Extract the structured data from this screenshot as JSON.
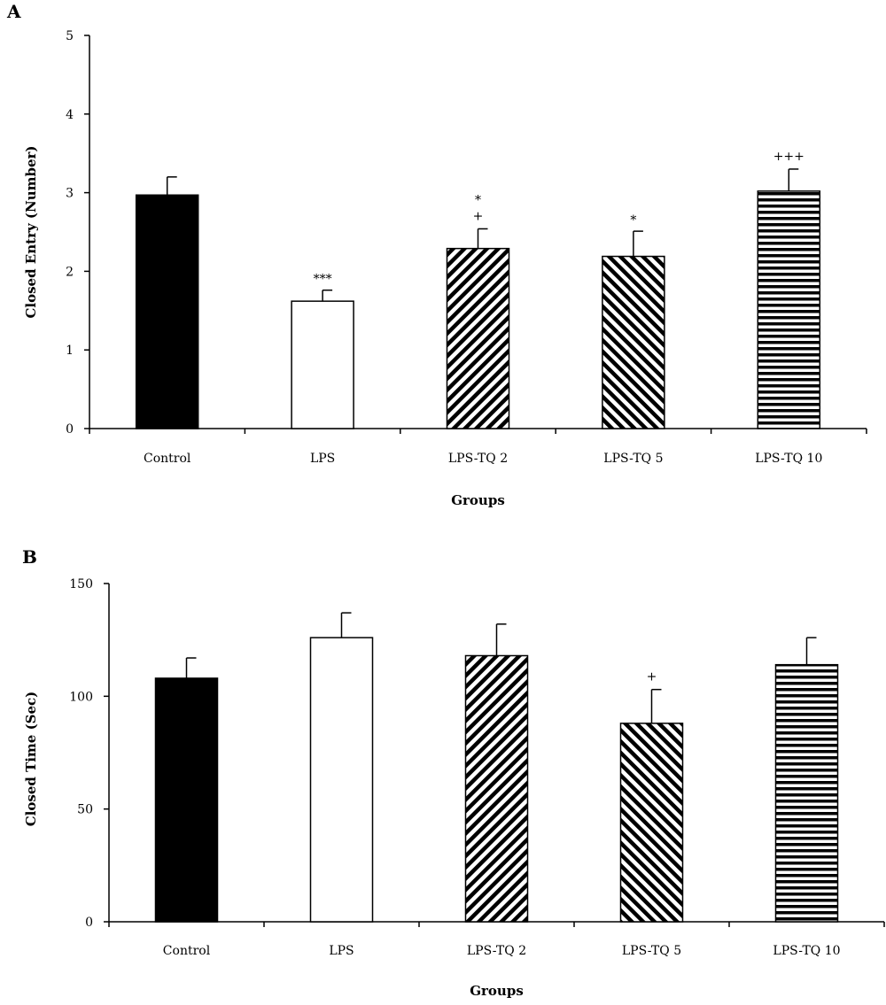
{
  "chart_data": [
    {
      "panel": "A",
      "type": "bar",
      "categories": [
        "Control",
        "LPS",
        "LPS-TQ 2",
        "LPS-TQ 5",
        "LPS-TQ 10"
      ],
      "values": [
        2.97,
        1.62,
        2.29,
        2.19,
        3.02
      ],
      "errors": [
        0.23,
        0.14,
        0.25,
        0.32,
        0.28
      ],
      "patterns": [
        "solid-black",
        "white",
        "diag-up",
        "diag-down",
        "horizontal"
      ],
      "annotations": [
        "",
        "***",
        "*\n+",
        "*",
        "+++"
      ],
      "xlabel": "Groups",
      "ylabel": "Closed Entry (Number)",
      "ylim": [
        0,
        5
      ],
      "yticks": [
        0,
        1,
        2,
        3,
        4,
        5
      ]
    },
    {
      "panel": "B",
      "type": "bar",
      "categories": [
        "Control",
        "LPS",
        "LPS-TQ 2",
        "LPS-TQ 5",
        "LPS-TQ 10"
      ],
      "values": [
        108,
        126,
        118,
        88,
        114
      ],
      "errors": [
        9,
        11,
        14,
        15,
        12
      ],
      "patterns": [
        "solid-black",
        "white",
        "diag-up",
        "diag-down",
        "horizontal"
      ],
      "annotations": [
        "",
        "",
        "",
        "+",
        ""
      ],
      "xlabel": "Groups",
      "ylabel": "Closed Time (Sec)",
      "ylim": [
        0,
        150
      ],
      "yticks": [
        0,
        50,
        100,
        150
      ]
    }
  ]
}
